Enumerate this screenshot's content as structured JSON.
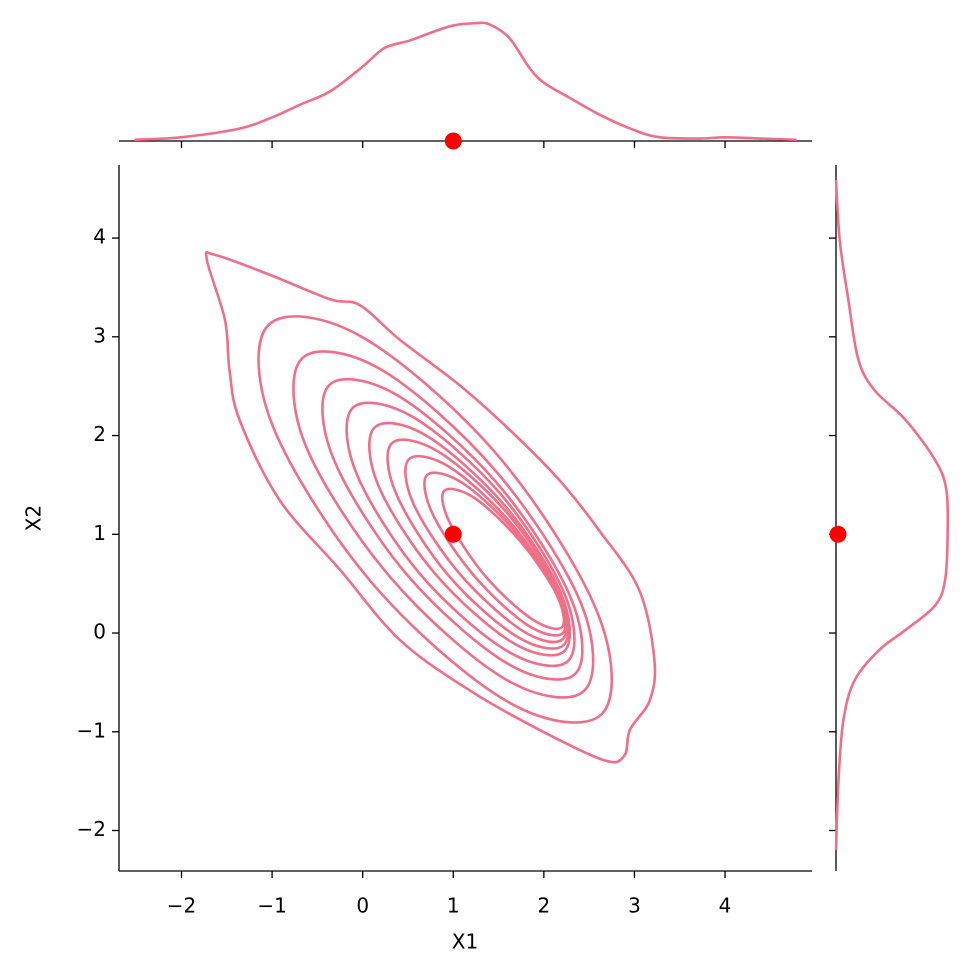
{
  "chart_data": {
    "type": "kde_joint",
    "xlabel": "X1",
    "ylabel": "X2",
    "color": "#ef6f88",
    "xlim": [
      -2.69,
      4.96
    ],
    "ylim": [
      -2.41,
      4.74
    ],
    "xticks": [
      {
        "value": -2,
        "label": "−2"
      },
      {
        "value": -1,
        "label": "−1"
      },
      0,
      1,
      2,
      3,
      4
    ],
    "yticks": [
      {
        "value": -2,
        "label": "−2"
      },
      {
        "value": -1,
        "label": "−1"
      },
      0,
      1,
      2,
      3,
      4
    ],
    "contours": [
      {
        "x": [
          -1.72,
          -1.63,
          -1.03,
          -0.36,
          -0.03,
          0.41,
          1.07,
          1.62,
          2.17,
          2.61,
          3.05,
          3.22,
          3.17,
          2.95,
          2.89,
          2.67,
          1.95,
          1.18,
          0.41,
          -0.25,
          -0.92,
          -1.36,
          -1.47,
          -1.52
        ],
        "y": [
          3.78,
          3.83,
          3.63,
          3.38,
          3.32,
          2.97,
          2.51,
          2.06,
          1.55,
          1.04,
          0.44,
          -0.27,
          -0.68,
          -0.98,
          -1.24,
          -1.29,
          -0.98,
          -0.58,
          -0.07,
          0.64,
          1.35,
          2.16,
          2.66,
          3.17
        ]
      },
      {
        "x": [
          2.64,
          2.59,
          1.49,
          -0.01,
          -1.04,
          -0.99,
          0.11,
          1.61
        ],
        "y": [
          -0.82,
          0.21,
          1.8,
          3.0,
          3.12,
          2.09,
          0.5,
          -0.7
        ]
      },
      {
        "x": [
          2.45,
          2.41,
          1.47,
          0.2,
          -0.67,
          -0.63,
          0.31,
          1.58
        ],
        "y": [
          -0.58,
          0.3,
          1.64,
          2.67,
          2.78,
          1.9,
          0.56,
          -0.47
        ]
      },
      {
        "x": [
          2.35,
          2.3,
          1.49,
          0.38,
          -0.37,
          -0.32,
          0.49,
          1.6
        ],
        "y": [
          -0.41,
          0.35,
          1.51,
          2.41,
          2.51,
          1.76,
          0.59,
          -0.31
        ]
      },
      {
        "x": [
          2.27,
          2.23,
          1.52,
          0.55,
          -0.11,
          -0.07,
          0.64,
          1.61
        ],
        "y": [
          -0.28,
          0.39,
          1.41,
          2.19,
          2.28,
          1.62,
          0.59,
          -0.19
        ]
      },
      {
        "x": [
          2.23,
          2.19,
          1.56,
          0.7,
          0.13,
          0.17,
          0.8,
          1.66
        ],
        "y": [
          -0.18,
          0.4,
          1.3,
          2.0,
          2.08,
          1.5,
          0.6,
          -0.1
        ]
      },
      {
        "x": [
          2.22,
          2.18,
          1.6,
          0.83,
          0.32,
          0.37,
          0.94,
          1.71
        ],
        "y": [
          -0.12,
          0.39,
          1.21,
          1.84,
          1.92,
          1.41,
          0.59,
          -0.04
        ]
      },
      {
        "x": [
          2.21,
          2.16,
          1.64,
          0.96,
          0.51,
          0.56,
          1.08,
          1.77
        ],
        "y": [
          -0.06,
          0.39,
          1.11,
          1.68,
          1.76,
          1.31,
          0.59,
          0.02
        ]
      },
      {
        "x": [
          2.21,
          2.15,
          1.69,
          1.1,
          0.71,
          0.77,
          1.23,
          1.82
        ],
        "y": [
          0.0,
          0.39,
          1.02,
          1.52,
          1.6,
          1.21,
          0.58,
          0.08
        ]
      },
      {
        "x": [
          2.2,
          2.14,
          1.74,
          1.23,
          0.9,
          0.96,
          1.36,
          1.87
        ],
        "y": [
          0.06,
          0.39,
          0.93,
          1.37,
          1.44,
          1.12,
          0.57,
          0.14
        ]
      }
    ],
    "marginal_x": {
      "x": [
        -2.52,
        -2.01,
        -1.36,
        -1.0,
        -0.7,
        -0.36,
        0.0,
        0.24,
        0.52,
        0.74,
        0.99,
        1.24,
        1.4,
        1.62,
        1.84,
        2.0,
        2.28,
        2.62,
        2.99,
        3.28,
        3.72,
        4.0,
        4.38,
        4.79
      ],
      "density": [
        0.01,
        0.03,
        0.1,
        0.19,
        0.29,
        0.4,
        0.6,
        0.75,
        0.81,
        0.87,
        0.93,
        0.95,
        0.94,
        0.83,
        0.59,
        0.47,
        0.35,
        0.21,
        0.09,
        0.03,
        0.02,
        0.03,
        0.02,
        0.01
      ],
      "densitylim": [
        0,
        1
      ]
    },
    "marginal_y": {
      "y": [
        4.59,
        3.98,
        3.37,
        2.77,
        2.46,
        2.16,
        1.75,
        1.45,
        0.99,
        0.54,
        0.28,
        0.03,
        -0.17,
        -0.48,
        -0.88,
        -1.49,
        -2.2
      ],
      "density": [
        0.0,
        0.03,
        0.1,
        0.18,
        0.31,
        0.56,
        0.8,
        0.89,
        0.9,
        0.88,
        0.8,
        0.56,
        0.35,
        0.15,
        0.06,
        0.02,
        0.0
      ],
      "densitylim": [
        0,
        1
      ]
    },
    "point": {
      "x": 1,
      "y": 1,
      "color": "#ff0000"
    }
  }
}
